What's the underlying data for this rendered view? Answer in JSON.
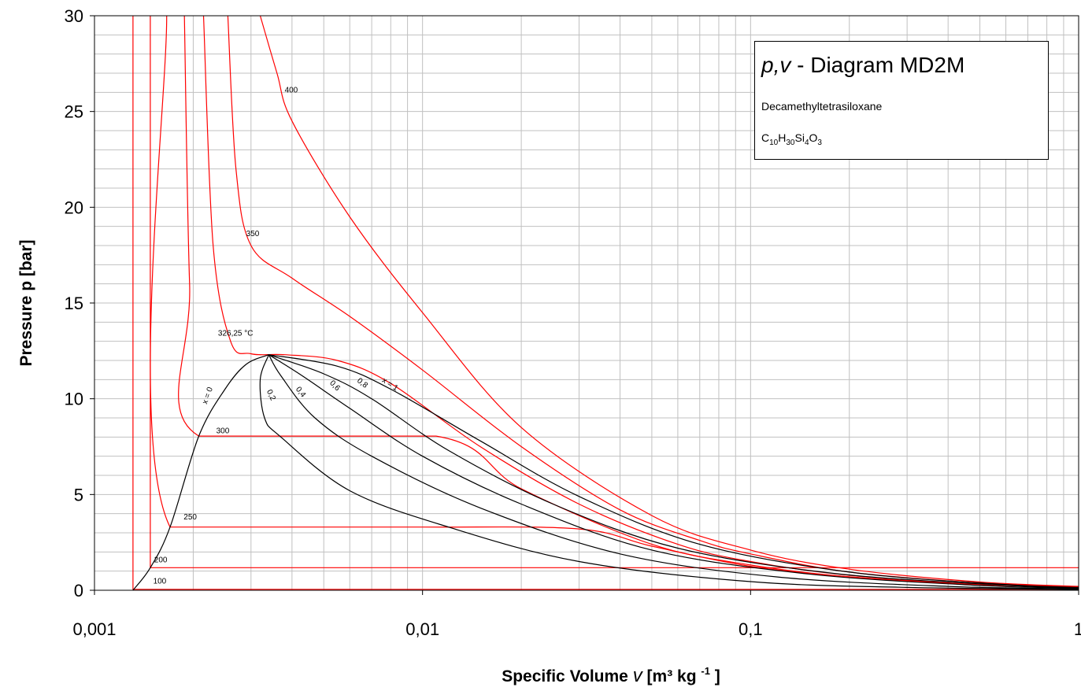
{
  "chart_data": {
    "type": "line",
    "title_symbol": "p,v",
    "title_text": " - Diagram MD2M",
    "substance": "Decamethyltetrasiloxane",
    "formula": [
      {
        "t": "C",
        "sub": "10"
      },
      {
        "t": "H",
        "sub": "30"
      },
      {
        "t": "Si",
        "sub": "4"
      },
      {
        "t": "O",
        "sub": "3"
      }
    ],
    "xlabel_prefix": "Specific Volume ",
    "xlabel_symbol": "v",
    "xlabel_units": "[m³ kg",
    "xlabel_exp": "-1",
    "xlabel_close": "]",
    "ylabel": "Pressure p [bar]",
    "xscale": "log",
    "xlim": [
      0.001,
      1
    ],
    "ylim": [
      0,
      30
    ],
    "xtick_labels": [
      "0,001",
      "0,01",
      "0,1",
      "1"
    ],
    "ytick_labels": [
      "0",
      "5",
      "10",
      "15",
      "20",
      "25",
      "30"
    ],
    "grid": true,
    "critical_point": {
      "v": 0.0034,
      "p": 12.3
    },
    "isotherms": [
      {
        "label": "100",
        "color": "#ff0000",
        "points": [
          [
            0.00131,
            30
          ],
          [
            0.00131,
            0.05
          ],
          [
            1,
            0.05
          ]
        ]
      },
      {
        "label": "200",
        "color": "#ff0000",
        "points": [
          [
            0.00148,
            30
          ],
          [
            0.00148,
            1.18
          ],
          [
            1,
            1.18
          ]
        ]
      },
      {
        "label": "250",
        "color": "#ff0000",
        "points": [
          [
            0.00166,
            30
          ],
          [
            0.0017,
            3.3
          ],
          [
            0.01,
            3.3
          ],
          [
            0.03,
            3.2
          ],
          [
            0.05,
            2.3
          ],
          [
            0.1,
            1.25
          ],
          [
            0.2,
            0.7
          ],
          [
            0.5,
            0.3
          ],
          [
            1,
            0.15
          ]
        ]
      },
      {
        "label": "300",
        "color": "#ff0000",
        "points": [
          [
            0.00188,
            30
          ],
          [
            0.00195,
            16
          ],
          [
            0.00208,
            8.05
          ],
          [
            0.011,
            8.05
          ],
          [
            0.02,
            5.3
          ],
          [
            0.05,
            2.4
          ],
          [
            0.1,
            1.32
          ],
          [
            0.2,
            0.7
          ],
          [
            0.5,
            0.3
          ],
          [
            1,
            0.15
          ]
        ]
      },
      {
        "label": "326,25 °C",
        "color": "#ff0000",
        "points": [
          [
            0.00215,
            30
          ],
          [
            0.0023,
            18
          ],
          [
            0.0026,
            13
          ],
          [
            0.003,
            12.35
          ],
          [
            0.0038,
            12.3
          ],
          [
            0.0055,
            12.0
          ],
          [
            0.008,
            10.8
          ],
          [
            0.015,
            7.5
          ],
          [
            0.03,
            4.5
          ],
          [
            0.06,
            2.4
          ],
          [
            0.1,
            1.5
          ],
          [
            0.2,
            0.78
          ],
          [
            0.5,
            0.32
          ],
          [
            1,
            0.16
          ]
        ]
      },
      {
        "label": "350",
        "color": "#ff0000",
        "points": [
          [
            0.00255,
            30
          ],
          [
            0.0027,
            22
          ],
          [
            0.003,
            18
          ],
          [
            0.004,
            16.3
          ],
          [
            0.006,
            14.3
          ],
          [
            0.01,
            11.5
          ],
          [
            0.02,
            7.5
          ],
          [
            0.04,
            4.2
          ],
          [
            0.07,
            2.6
          ],
          [
            0.1,
            1.9
          ],
          [
            0.2,
            0.95
          ],
          [
            0.5,
            0.38
          ],
          [
            1,
            0.18
          ]
        ]
      },
      {
        "label": "400",
        "color": "#ff0000",
        "points": [
          [
            0.0032,
            30
          ],
          [
            0.0036,
            27
          ],
          [
            0.004,
            24.5
          ],
          [
            0.006,
            19.5
          ],
          [
            0.01,
            14.5
          ],
          [
            0.02,
            8.5
          ],
          [
            0.05,
            3.9
          ],
          [
            0.1,
            2.1
          ],
          [
            0.2,
            1.1
          ],
          [
            0.5,
            0.43
          ],
          [
            1,
            0.2
          ]
        ]
      }
    ],
    "quality_lines": [
      {
        "label": "x = 0",
        "color": "#000000",
        "points": [
          [
            0.00131,
            0
          ],
          [
            0.00148,
            1.18
          ],
          [
            0.0017,
            3.3
          ],
          [
            0.00208,
            8.05
          ],
          [
            0.0025,
            10.5
          ],
          [
            0.0029,
            11.8
          ],
          [
            0.0034,
            12.3
          ]
        ]
      },
      {
        "label": "0,2",
        "color": "#000000",
        "points": [
          [
            0.0034,
            12.3
          ],
          [
            0.0032,
            11.0
          ],
          [
            0.0033,
            9.0
          ],
          [
            0.0037,
            8.0
          ],
          [
            0.006,
            5.2
          ],
          [
            0.012,
            3.3
          ],
          [
            0.03,
            1.5
          ],
          [
            0.1,
            0.45
          ],
          [
            0.3,
            0.15
          ],
          [
            1,
            0.04
          ]
        ]
      },
      {
        "label": "0,4",
        "color": "#000000",
        "points": [
          [
            0.0034,
            12.3
          ],
          [
            0.0037,
            11.2
          ],
          [
            0.0047,
            9.0
          ],
          [
            0.007,
            7.0
          ],
          [
            0.015,
            4.3
          ],
          [
            0.04,
            1.9
          ],
          [
            0.12,
            0.7
          ],
          [
            0.4,
            0.2
          ],
          [
            1,
            0.08
          ]
        ]
      },
      {
        "label": "0,6",
        "color": "#000000",
        "points": [
          [
            0.0034,
            12.3
          ],
          [
            0.0043,
            11.2
          ],
          [
            0.006,
            9.5
          ],
          [
            0.01,
            7.0
          ],
          [
            0.02,
            4.5
          ],
          [
            0.05,
            2.1
          ],
          [
            0.15,
            0.85
          ],
          [
            0.5,
            0.25
          ],
          [
            1,
            0.11
          ]
        ]
      },
      {
        "label": "0,8",
        "color": "#000000",
        "points": [
          [
            0.0034,
            12.3
          ],
          [
            0.005,
            11.3
          ],
          [
            0.007,
            10.0
          ],
          [
            0.012,
            7.3
          ],
          [
            0.025,
            4.5
          ],
          [
            0.06,
            2.2
          ],
          [
            0.18,
            0.88
          ],
          [
            0.6,
            0.26
          ],
          [
            1,
            0.13
          ]
        ]
      },
      {
        "label": "x = 1",
        "color": "#000000",
        "points": [
          [
            0.0034,
            12.3
          ],
          [
            0.0055,
            11.7
          ],
          [
            0.008,
            10.5
          ],
          [
            0.015,
            7.8
          ],
          [
            0.03,
            4.9
          ],
          [
            0.07,
            2.4
          ],
          [
            0.2,
            0.95
          ],
          [
            0.6,
            0.3
          ],
          [
            1,
            0.15
          ]
        ]
      }
    ]
  }
}
